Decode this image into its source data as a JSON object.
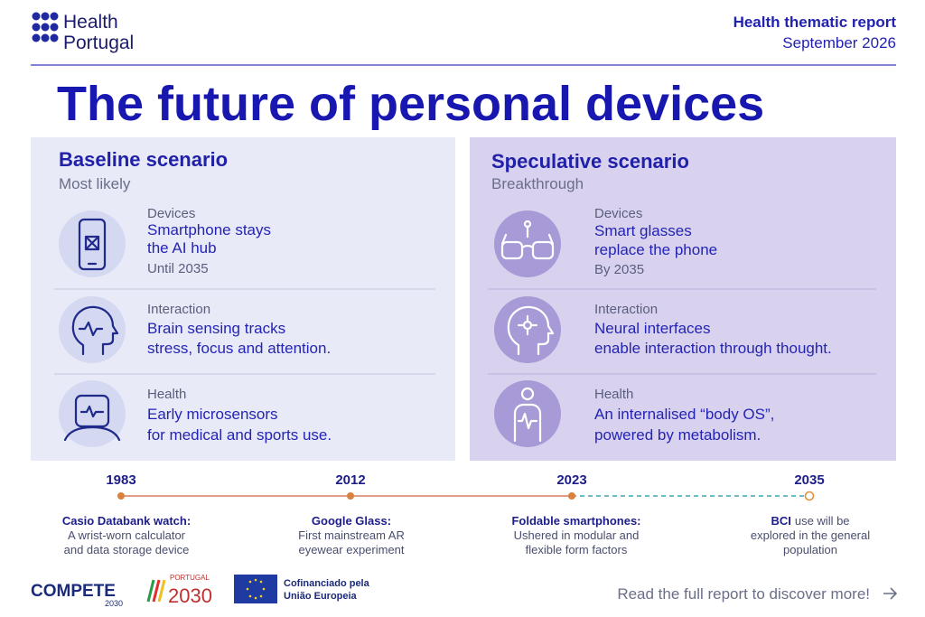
{
  "header": {
    "brand": [
      "Health",
      "Portugal"
    ],
    "report_title": "Health thematic report",
    "report_date": "September 2026"
  },
  "title": "The future of personal devices",
  "scenarios": [
    {
      "title": "Baseline scenario",
      "subtitle": "Most likely",
      "items": [
        {
          "label": "Devices",
          "lines": [
            "Smartphone stays",
            "the AI hub"
          ],
          "note": "Until 2035"
        },
        {
          "label": "Interaction",
          "lines": [
            "Brain sensing tracks",
            "stress, focus and attention."
          ]
        },
        {
          "label": "Health",
          "lines": [
            "Early microsensors",
            "for medical and sports use."
          ]
        }
      ]
    },
    {
      "title": "Speculative scenario",
      "subtitle": "Breakthrough",
      "items": [
        {
          "label": "Devices",
          "lines": [
            "Smart glasses",
            "replace the phone"
          ],
          "note": "By 2035"
        },
        {
          "label": "Interaction",
          "lines": [
            "Neural interfaces",
            "enable interaction through thought."
          ]
        },
        {
          "label": "Health",
          "lines": [
            "An internalised “body OS”,",
            "powered by metabolism."
          ]
        }
      ]
    }
  ],
  "timeline": [
    {
      "year": "1983",
      "heading": "Casio Databank watch:",
      "lines": [
        "A wrist-worn calculator",
        "and data storage device"
      ]
    },
    {
      "year": "2012",
      "heading": "Google Glass:",
      "lines": [
        "First mainstream AR",
        "eyewear experiment"
      ]
    },
    {
      "year": "2023",
      "heading": "Foldable smartphones:",
      "lines": [
        "Ushered in modular and",
        "flexible form factors"
      ]
    },
    {
      "year": "2035",
      "heading": "BCI",
      "lines": [
        "use will be",
        "explored in the general",
        "population"
      ]
    }
  ],
  "footer": {
    "compete": [
      "COMPETE",
      "2030"
    ],
    "portugal": [
      "PORTUGAL",
      "2030"
    ],
    "eu": [
      "Cofinanciado pela",
      "União Europeia"
    ],
    "cta": "Read the full report to discover more!"
  }
}
